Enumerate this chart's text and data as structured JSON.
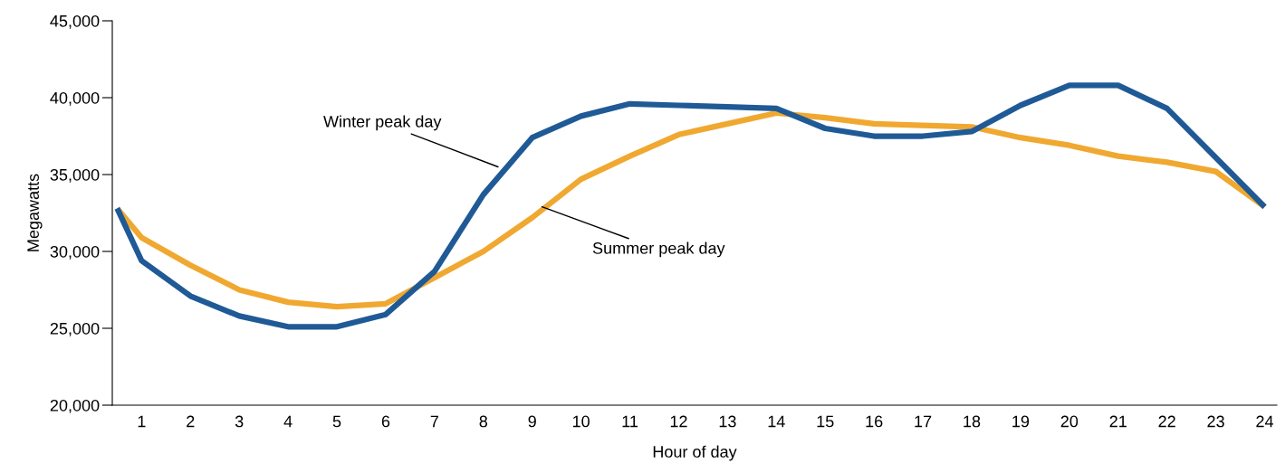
{
  "chart_data": {
    "type": "line",
    "xlabel": "Hour of day",
    "ylabel": "Megawatts",
    "x": [
      0.5,
      1,
      2,
      3,
      4,
      5,
      6,
      7,
      8,
      9,
      10,
      11,
      12,
      13,
      14,
      15,
      16,
      17,
      18,
      19,
      20,
      21,
      22,
      23,
      24
    ],
    "xlim": [
      0.4,
      24.25
    ],
    "xticks": [
      1,
      2,
      3,
      4,
      5,
      6,
      7,
      8,
      9,
      10,
      11,
      12,
      13,
      14,
      15,
      16,
      17,
      18,
      19,
      20,
      21,
      22,
      23,
      24
    ],
    "ylim": [
      20000,
      45000
    ],
    "yticks": [
      {
        "value": 20000,
        "label": "20,000"
      },
      {
        "value": 25000,
        "label": "25,000"
      },
      {
        "value": 30000,
        "label": "30,000"
      },
      {
        "value": 35000,
        "label": "35,000"
      },
      {
        "value": 40000,
        "label": "40,000"
      },
      {
        "value": 45000,
        "label": "45,000"
      }
    ],
    "series": [
      {
        "color": "#f0a830",
        "values": [
          32800,
          30900,
          29100,
          27500,
          26700,
          26400,
          26600,
          28300,
          30000,
          32200,
          34700,
          36200,
          37600,
          38300,
          39000,
          38700,
          38300,
          38200,
          38100,
          37400,
          36900,
          36200,
          35800,
          35200,
          32900
        ]
      },
      {
        "color": "#1f5a96",
        "values": [
          32800,
          29400,
          27100,
          25800,
          25100,
          25100,
          25900,
          28700,
          33700,
          37400,
          38800,
          39600,
          39500,
          39400,
          39300,
          38000,
          37500,
          37500,
          37800,
          39500,
          40800,
          40800,
          39300,
          36100,
          32900
        ]
      }
    ],
    "annotations": [
      {
        "text": "Winter peak day",
        "x": 8.3,
        "y": 35500
      },
      {
        "text": "Summer peak day",
        "x": 9.2,
        "y": 32900
      }
    ],
    "grid": false,
    "legend": false,
    "marker": "none",
    "line_style": "solid"
  }
}
